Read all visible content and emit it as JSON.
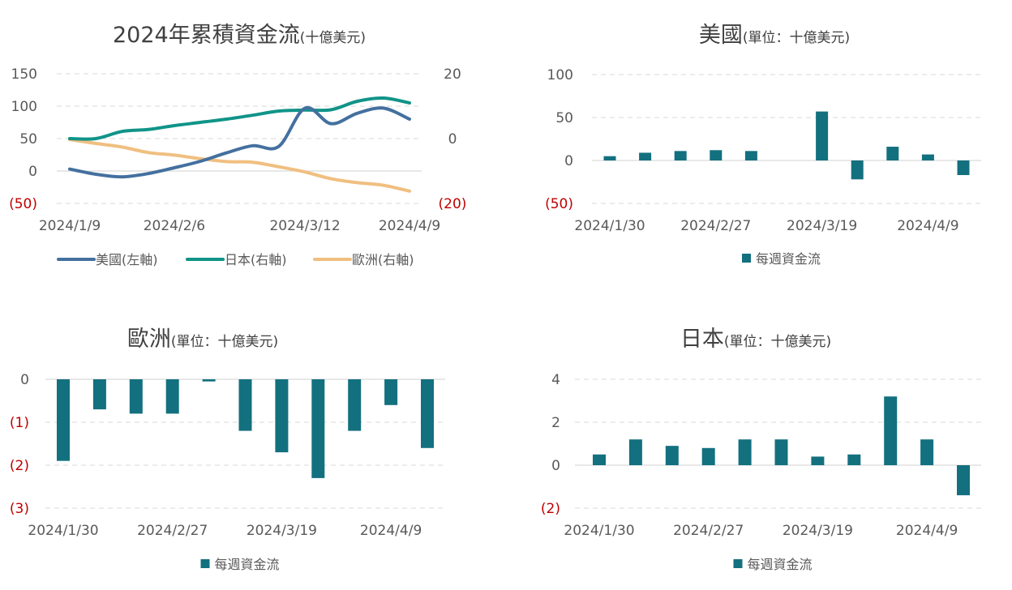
{
  "colors": {
    "us_line": "#44709F",
    "japan_line": "#109488",
    "europe_line": "#F0BF80",
    "bar": "#13707F",
    "negative_tick": "#C00000"
  },
  "chart_data": [
    {
      "id": "cumulative",
      "type": "line",
      "title": "2024年累積資金流",
      "title_suffix": "(十億美元)",
      "x_tick_labels": [
        "2024/1/9",
        "2024/2/6",
        "2024/3/12",
        "2024/4/9"
      ],
      "x_tick_index": [
        0,
        4,
        9,
        13
      ],
      "y_left": {
        "range": [
          -50,
          150
        ],
        "ticks": [
          150,
          100,
          50,
          0,
          -50
        ],
        "labels": [
          "150",
          "100",
          "50",
          "0",
          "(50)"
        ]
      },
      "y_right": {
        "range": [
          -20,
          20
        ],
        "ticks": [
          20,
          0,
          -20
        ],
        "labels": [
          "20",
          "0",
          "(20)"
        ]
      },
      "grid": true,
      "legend_position": "bottom",
      "series": [
        {
          "name": "美國(左軸)",
          "axis": "left",
          "color_key": "us_line",
          "values": [
            3,
            -5,
            -9,
            -4,
            5,
            15,
            28,
            39,
            38,
            97,
            73,
            89,
            97,
            80
          ]
        },
        {
          "name": "日本(右軸)",
          "axis": "right",
          "color_key": "japan_line",
          "values": [
            0,
            0,
            2.2,
            2.8,
            4,
            5,
            6,
            7.2,
            8.5,
            8.8,
            8.9,
            11.5,
            12.5,
            11
          ]
        },
        {
          "name": "歐洲(右軸)",
          "axis": "right",
          "color_key": "europe_line",
          "values": [
            -0.3,
            -1.5,
            -2.6,
            -4.3,
            -5.1,
            -6.2,
            -7.1,
            -7.3,
            -8.7,
            -10.3,
            -12.4,
            -13.6,
            -14.4,
            -16.2
          ]
        }
      ]
    },
    {
      "id": "us",
      "type": "bar",
      "title": "美國",
      "title_suffix": "(單位：十億美元)",
      "x_tick_labels": [
        "2024/1/30",
        "2024/2/27",
        "2024/3/19",
        "2024/4/9"
      ],
      "y_range": [
        -50,
        100
      ],
      "y_ticks": [
        100,
        50,
        0,
        -50
      ],
      "y_labels": [
        "100",
        "50",
        "0",
        "(50)"
      ],
      "grid": true,
      "legend_position": "bottom",
      "series": [
        {
          "name": "每週資金流",
          "values": [
            5,
            9,
            11,
            12,
            11,
            0,
            57,
            -22,
            16,
            7,
            -17
          ]
        }
      ]
    },
    {
      "id": "europe",
      "type": "bar",
      "title": "歐洲",
      "title_suffix": "(單位：十億美元)",
      "x_tick_labels": [
        "2024/1/30",
        "2024/2/27",
        "2024/3/19",
        "2024/4/9"
      ],
      "y_range": [
        -3,
        0
      ],
      "y_ticks": [
        0,
        -1,
        -2,
        -3
      ],
      "y_labels": [
        "0",
        "(1)",
        "(2)",
        "(3)"
      ],
      "grid": true,
      "legend_position": "bottom",
      "series": [
        {
          "name": "每週資金流",
          "values": [
            -1.9,
            -0.7,
            -0.8,
            -0.8,
            -0.05,
            -1.2,
            -1.7,
            -2.3,
            -1.2,
            -0.6,
            -1.6
          ]
        }
      ]
    },
    {
      "id": "japan",
      "type": "bar",
      "title": "日本",
      "title_suffix": "(單位：十億美元)",
      "x_tick_labels": [
        "2024/1/30",
        "2024/2/27",
        "2024/3/19",
        "2024/4/9"
      ],
      "y_range": [
        -2,
        4
      ],
      "y_ticks": [
        4,
        2,
        0,
        -2
      ],
      "y_labels": [
        "4",
        "2",
        "0",
        "(2)"
      ],
      "grid": true,
      "legend_position": "bottom",
      "series": [
        {
          "name": "每週資金流",
          "values": [
            0.5,
            1.2,
            0.9,
            0.8,
            1.2,
            1.2,
            0.4,
            0.5,
            3.2,
            1.2,
            -1.4
          ]
        }
      ]
    }
  ]
}
